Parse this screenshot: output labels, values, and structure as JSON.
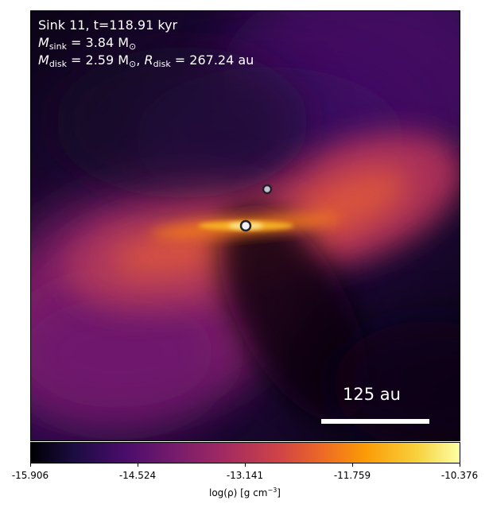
{
  "annotation": {
    "line1": "Sink 11, t=118.91 kyr",
    "m_sink_symbol": "M",
    "m_sink_sub": "sink",
    "m_sink_value": " = 3.84 M",
    "m_sink_unit_sub": "⊙",
    "m_disk_symbol": "M",
    "m_disk_sub": "disk",
    "m_disk_value": " = 2.59 M",
    "m_disk_unit_sub": "⊙",
    "separator": ", ",
    "r_disk_symbol": "R",
    "r_disk_sub": "disk",
    "r_disk_value": " = 267.24 au"
  },
  "scalebar": {
    "label": "125 au"
  },
  "colorbar": {
    "ticks": [
      "-15.906",
      "-14.524",
      "-13.141",
      "-11.759",
      "-10.376"
    ],
    "label_main": "log(ρ) [g cm",
    "label_sup": "−3",
    "label_end": "]",
    "colormap": "inferno"
  },
  "sinks": [
    {
      "name": "primary-sink"
    },
    {
      "name": "secondary-sink"
    }
  ]
}
